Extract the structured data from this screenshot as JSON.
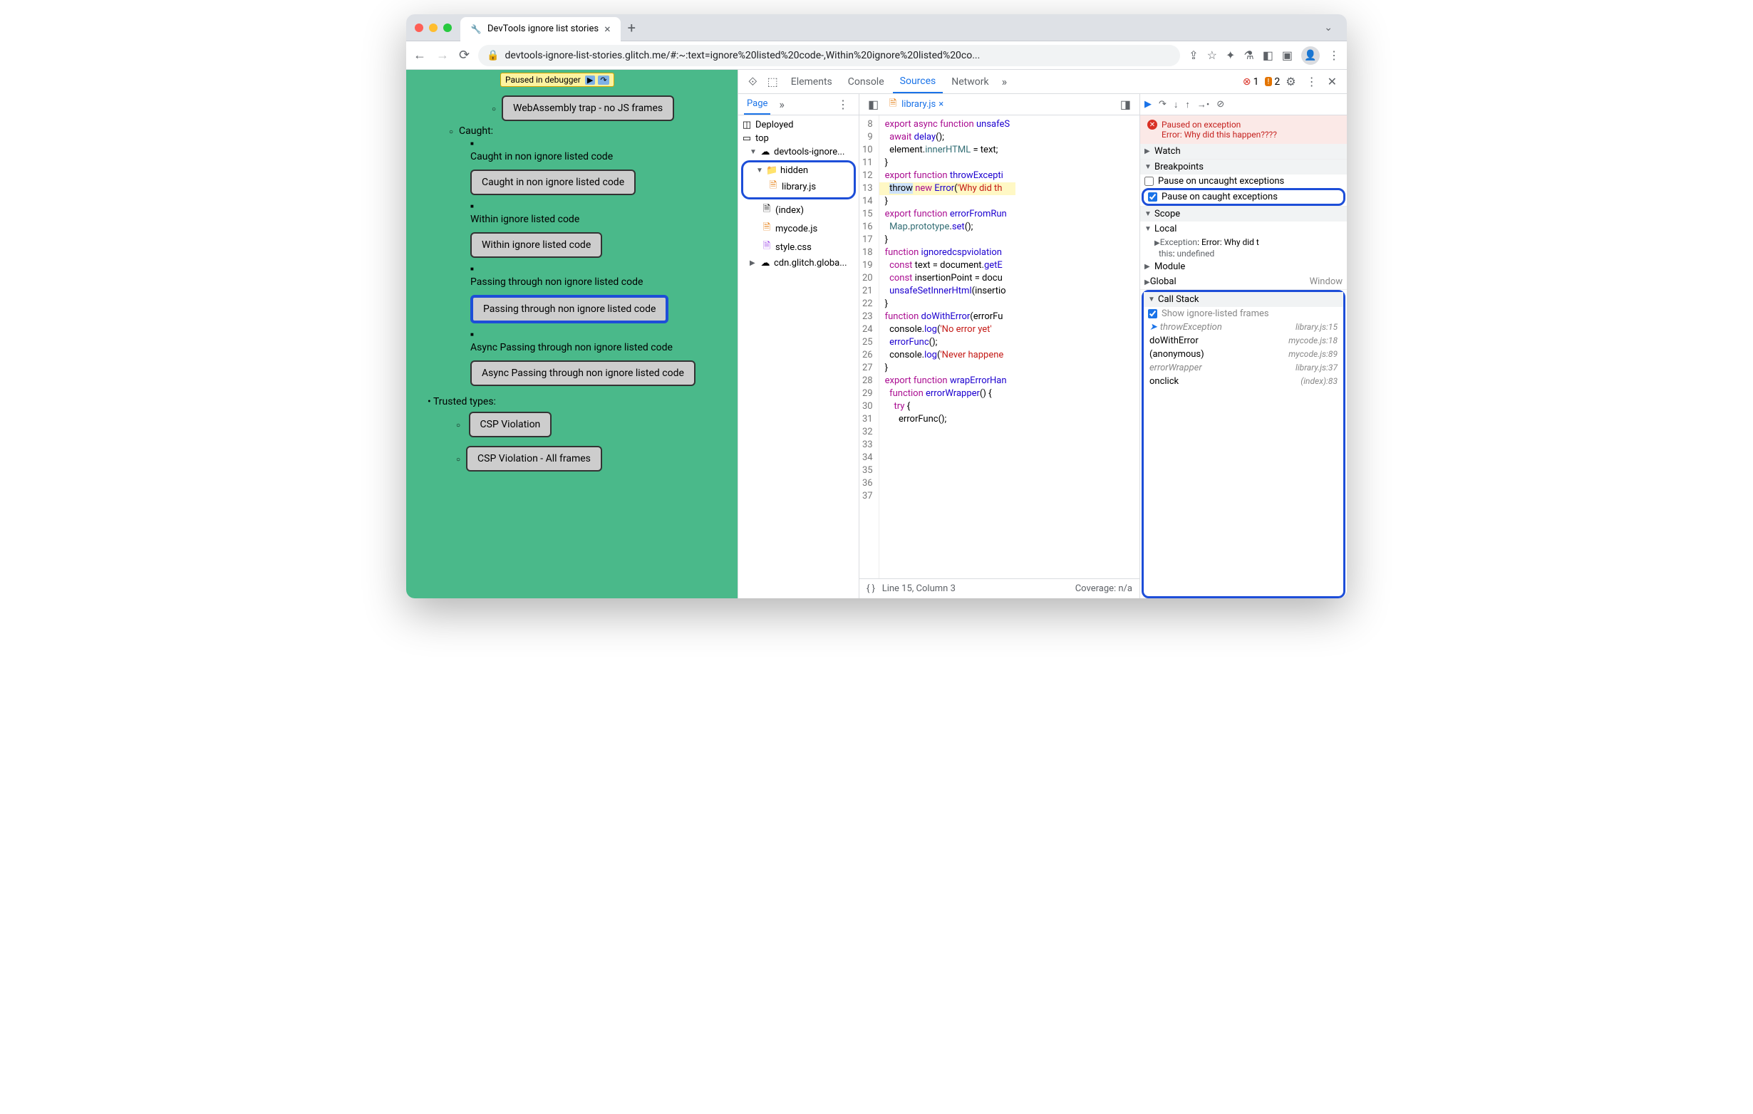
{
  "browser": {
    "tab_title": "DevTools ignore list stories",
    "url": "devtools-ignore-list-stories.glitch.me/#:~:text=ignore%20listed%20code-,Within%20ignore%20listed%20co..."
  },
  "paused_badge": "Paused in debugger",
  "page": {
    "btn_wasm": "WebAssembly trap - no JS frames",
    "caught_label": "Caught:",
    "li_caught_non": "Caught in non ignore listed code",
    "btn_caught_non": "Caught in non ignore listed code",
    "li_within": "Within ignore listed code",
    "btn_within": "Within ignore listed code",
    "li_passing": "Passing through non ignore listed code",
    "btn_passing": "Passing through non ignore listed code",
    "li_async": "Async Passing through non ignore listed code",
    "btn_async": "Async Passing through non ignore listed code",
    "trusted_label": "Trusted types:",
    "btn_csp": "CSP Violation",
    "btn_csp_all": "CSP Violation - All frames"
  },
  "devtools": {
    "tabs": {
      "elements": "Elements",
      "console": "Console",
      "sources": "Sources",
      "network": "Network"
    },
    "errors": "1",
    "warnings": "2",
    "left": {
      "page_tab": "Page",
      "deployed": "Deployed",
      "top": "top",
      "domain": "devtools-ignore...",
      "hidden": "hidden",
      "library": "library.js",
      "index": "(index)",
      "mycode": "mycode.js",
      "style": "style.css",
      "cdn": "cdn.glitch.globa..."
    },
    "editor": {
      "filename": "library.js",
      "gutter_start": 8,
      "gutter_end": 37,
      "lines": [
        {
          "n": 8,
          "html": "<span class='kw'>export</span> <span class='kw'>async</span> <span class='kw'>function</span> <span class='fn'>unsafeS</span>"
        },
        {
          "n": 9,
          "html": "  <span class='kw'>await</span> <span class='fn'>delay</span>();"
        },
        {
          "n": 10,
          "html": "  element.<span class='id'>innerHTML</span> = text;"
        },
        {
          "n": 11,
          "html": "}"
        },
        {
          "n": 12,
          "html": ""
        },
        {
          "n": 13,
          "html": ""
        },
        {
          "n": 14,
          "html": "<span class='kw'>export</span> <span class='kw'>function</span> <span class='fn'>throwExcepti</span>"
        },
        {
          "n": 15,
          "hl": true,
          "html": "  <span class='token-sel'>throw</span> <span class='kw'>new</span> <span class='fn'>Error</span>(<span class='str'>'Why did th</span>"
        },
        {
          "n": 16,
          "html": "}"
        },
        {
          "n": 17,
          "html": ""
        },
        {
          "n": 18,
          "html": "<span class='kw'>export</span> <span class='kw'>function</span> <span class='fn'>errorFromRun</span>"
        },
        {
          "n": 19,
          "html": "  <span class='id'>Map</span>.<span class='id'>prototype</span>.<span class='fn'>set</span>();"
        },
        {
          "n": 20,
          "html": "}"
        },
        {
          "n": 21,
          "html": ""
        },
        {
          "n": 22,
          "html": "<span class='kw'>function</span> <span class='fn'>ignoredcspviolation</span>"
        },
        {
          "n": 23,
          "html": "  <span class='kw'>const</span> text = document.<span class='fn'>getE</span>"
        },
        {
          "n": 24,
          "html": "  <span class='kw'>const</span> insertionPoint = docu"
        },
        {
          "n": 25,
          "html": "  <span class='fn'>unsafeSetInnerHtml</span>(insertio"
        },
        {
          "n": 26,
          "html": "}"
        },
        {
          "n": 27,
          "html": ""
        },
        {
          "n": 28,
          "html": "<span class='kw'>function</span> <span class='fn'>doWithError</span>(errorFu"
        },
        {
          "n": 29,
          "html": "  console.<span class='fn'>log</span>(<span class='str'>'No error yet'</span>"
        },
        {
          "n": 30,
          "html": "  <span class='fn'>errorFunc</span>();"
        },
        {
          "n": 31,
          "html": "  console.<span class='fn'>log</span>(<span class='str'>'Never happene</span>"
        },
        {
          "n": 32,
          "html": "}"
        },
        {
          "n": 33,
          "html": ""
        },
        {
          "n": 34,
          "html": "<span class='kw'>export</span> <span class='kw'>function</span> <span class='fn'>wrapErrorHan</span>"
        },
        {
          "n": 35,
          "html": "  <span class='kw'>function</span> <span class='fn'>errorWrapper</span>() {"
        },
        {
          "n": 36,
          "html": "    <span class='kw'>try</span> {"
        },
        {
          "n": 37,
          "html": "      errorFunc();"
        }
      ],
      "status_line": "Line 15, Column 3",
      "status_cov": "Coverage: n/a"
    },
    "right": {
      "paused_title": "Paused on exception",
      "paused_msg": "Error: Why did this happen????",
      "watch": "Watch",
      "breakpoints": "Breakpoints",
      "bp_uncaught": "Pause on uncaught exceptions",
      "bp_caught": "Pause on caught exceptions",
      "scope": "Scope",
      "scope_local": "Local",
      "scope_exc_k": "Exception",
      "scope_exc_v": ": Error: Why did t",
      "scope_this_k": "this",
      "scope_this_v": "undefined",
      "scope_module": "Module",
      "scope_global": "Global",
      "scope_global_v": "Window",
      "callstack": "Call Stack",
      "show_ignored": "Show ignore-listed frames",
      "frames": [
        {
          "fn": "throwException",
          "loc": "library.js:15",
          "ignored": true,
          "cur": true
        },
        {
          "fn": "doWithError",
          "loc": "mycode.js:18"
        },
        {
          "fn": "(anonymous)",
          "loc": "mycode.js:89"
        },
        {
          "fn": "errorWrapper",
          "loc": "library.js:37",
          "ignored": true
        },
        {
          "fn": "onclick",
          "loc": "(index):83"
        }
      ]
    }
  }
}
